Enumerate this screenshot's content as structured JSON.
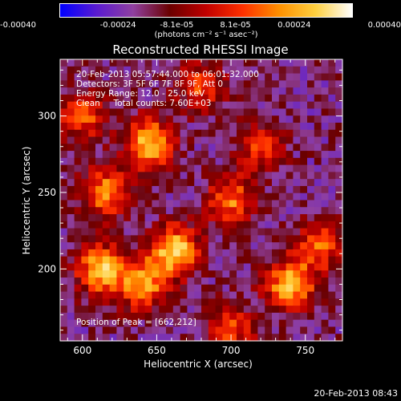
{
  "colorbar": {
    "ticks": [
      "-0.00040",
      "-0.00024",
      "-8.1e-05",
      "8.1e-05",
      "0.00024",
      "0.00040"
    ],
    "units": "(photons cm⁻² s⁻¹ asec⁻²)",
    "colors": [
      "#0000ff",
      "#5a1bd0",
      "#9040a0",
      "#6a0000",
      "#c00000",
      "#ff3000",
      "#ff9000",
      "#ffd040",
      "#ffffff"
    ]
  },
  "chart_data": {
    "type": "heatmap",
    "title": "Reconstructed RHESSI Image",
    "xlabel": "Heliocentric X (arcsec)",
    "ylabel": "Heliocentric Y (arcsec)",
    "xlim": [
      585,
      775
    ],
    "ylim": [
      153,
      337
    ],
    "x_ticks": [
      600,
      650,
      700,
      750
    ],
    "y_ticks": [
      200,
      250,
      300
    ],
    "annotations": [
      "20-Feb-2013 05:57:44.000 to 06:01:32.000",
      "Detectors: 3F 5F 6F 7F 8F 9F, Att 0",
      "Energy Range: 12.0 - 25.0 keV",
      "Clean     Total counts: 7.60E+03"
    ],
    "peak_text": "Position of Peak = [662,212]",
    "bright_sources": [
      {
        "x": 645,
        "y": 282,
        "intensity": 0.95
      },
      {
        "x": 662,
        "y": 212,
        "intensity": 1.0
      },
      {
        "x": 612,
        "y": 200,
        "intensity": 0.9
      },
      {
        "x": 640,
        "y": 190,
        "intensity": 0.85
      },
      {
        "x": 740,
        "y": 190,
        "intensity": 0.95
      },
      {
        "x": 700,
        "y": 245,
        "intensity": 0.7
      },
      {
        "x": 600,
        "y": 300,
        "intensity": 0.6
      },
      {
        "x": 615,
        "y": 250,
        "intensity": 0.75
      },
      {
        "x": 680,
        "y": 320,
        "intensity": 0.55
      },
      {
        "x": 720,
        "y": 280,
        "intensity": 0.5
      },
      {
        "x": 760,
        "y": 215,
        "intensity": 0.6
      },
      {
        "x": 700,
        "y": 160,
        "intensity": 0.55
      }
    ]
  },
  "timestamp": "20-Feb-2013 08:43"
}
